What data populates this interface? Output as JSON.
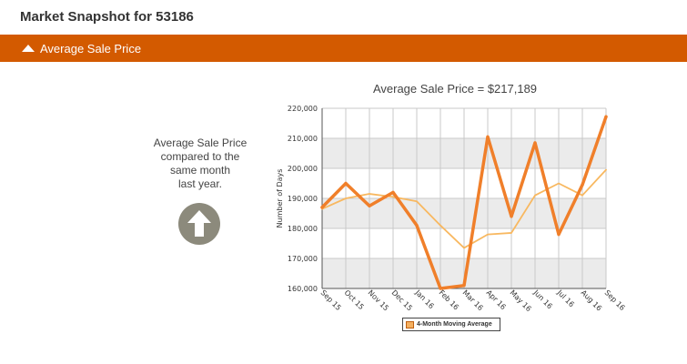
{
  "header": {
    "title": "Market Snapshot for 53186"
  },
  "section": {
    "label": "Average Sale Price",
    "icon": "triangle-up-icon"
  },
  "comparison": {
    "text": "Average Sale Price\ncompared to the\nsame month\nlast year.",
    "icon": "arrow-up-icon",
    "icon_color": "#8c8a7c"
  },
  "colors": {
    "section_bar": "#d35a00",
    "price_line": "#f07f2a",
    "moving_average_line": "#f8b860"
  },
  "chart_data": {
    "type": "line",
    "title": "Average Sale Price = $217,189",
    "xlabel": "",
    "ylabel": "Number of Days",
    "categories": [
      "Sep 15",
      "Oct 15",
      "Nov 15",
      "Dec 15",
      "Jan 16",
      "Feb 16",
      "Mar 16",
      "Apr 16",
      "May 16",
      "Jun 16",
      "Jul 16",
      "Aug 16",
      "Sep 16"
    ],
    "y_ticks": [
      "160,000",
      "170,000",
      "180,000",
      "190,000",
      "200,000",
      "210,000",
      "220,000"
    ],
    "ylim": [
      160000,
      220000
    ],
    "grid": true,
    "legend_position": "bottom",
    "series": [
      {
        "values": [
          187000,
          195000,
          187500,
          192000,
          181000,
          160000,
          161000,
          210500,
          184000,
          208500,
          178000,
          194500,
          217189
        ]
      },
      {
        "name": "4-Month Moving Average",
        "values": [
          186500,
          190000,
          191500,
          190500,
          189000,
          181000,
          173500,
          178000,
          178500,
          191000,
          195000,
          191000,
          199500
        ]
      }
    ]
  }
}
